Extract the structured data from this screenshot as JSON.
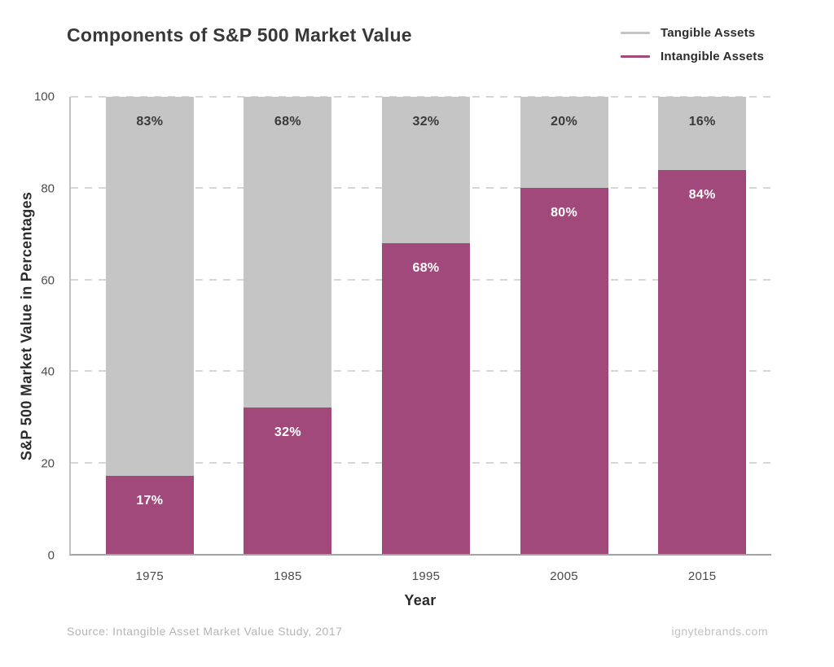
{
  "title": "Components of S&P 500 Market Value",
  "legend": {
    "items": [
      {
        "label": "Tangible Assets",
        "swatch_color": "#c5c4c4"
      },
      {
        "label": "Intangible Assets",
        "swatch_color": "#a2497c"
      }
    ]
  },
  "chart_data": {
    "type": "bar",
    "stacked": true,
    "title": "Components of S&P 500 Market Value",
    "xlabel": "Year",
    "ylabel": "S&P 500 Market Value in Percentages",
    "ylim": [
      0,
      100
    ],
    "yticks": [
      0,
      20,
      40,
      60,
      80,
      100
    ],
    "grid": "dashed-horizontal",
    "legend_position": "top-right",
    "categories": [
      "1975",
      "1985",
      "1995",
      "2005",
      "2015"
    ],
    "series": [
      {
        "name": "Intangible Assets",
        "color": "#a2497c",
        "label_color": "#ffffff",
        "values": [
          17,
          32,
          68,
          80,
          84
        ],
        "data_labels": [
          "17%",
          "32%",
          "68%",
          "80%",
          "84%"
        ]
      },
      {
        "name": "Tangible Assets",
        "color": "#c6c5c5",
        "label_color": "#3a3a3a",
        "values": [
          83,
          68,
          32,
          20,
          16
        ],
        "data_labels": [
          "83%",
          "68%",
          "32%",
          "20%",
          "16%"
        ]
      }
    ]
  },
  "footer": {
    "source": "Source: Intangible Asset Market Value Study, 2017",
    "website": "ignytebrands.com"
  }
}
